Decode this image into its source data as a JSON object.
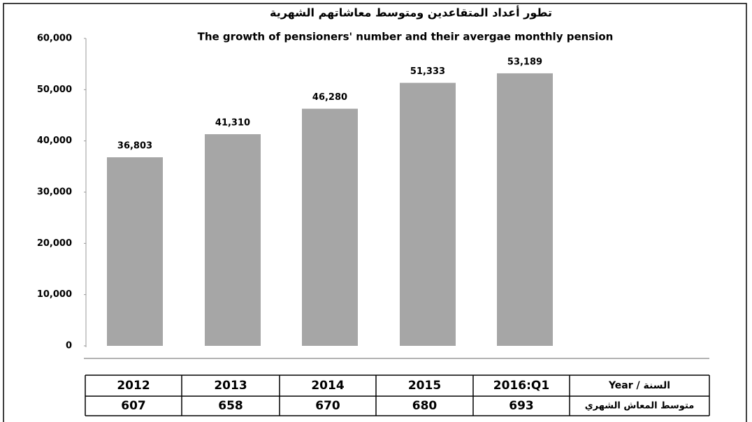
{
  "chart_data": {
    "type": "bar",
    "title": "تطور أعداد المتقاعدين ومتوسط معاشاتهم الشهرية",
    "subtitle": "The growth of pensioners' number and their avergae monthly pension",
    "categories": [
      "2012",
      "2013",
      "2014",
      "2015",
      "2016:Q1"
    ],
    "values": [
      36803,
      41310,
      46280,
      51333,
      53189
    ],
    "value_labels": [
      "36,803",
      "41,310",
      "46,280",
      "51,333",
      "53,189"
    ],
    "color": "#a6a6a6",
    "ylim": [
      0,
      60000
    ],
    "yticks": [
      0,
      {
        "value": 10000,
        "label": "10,000"
      },
      {
        "value": 20000,
        "label": "20,000"
      },
      {
        "value": 30000,
        "label": "30,000"
      },
      {
        "value": 40000,
        "label": "40,000"
      },
      {
        "value": 50000,
        "label": "50,000"
      },
      {
        "value": 60000,
        "label": "60,000"
      }
    ]
  },
  "table": {
    "year_label": "Year / السنة",
    "pension_label": "متوسط المعاش الشهري",
    "pension": [
      607,
      658,
      670,
      680,
      693
    ]
  }
}
